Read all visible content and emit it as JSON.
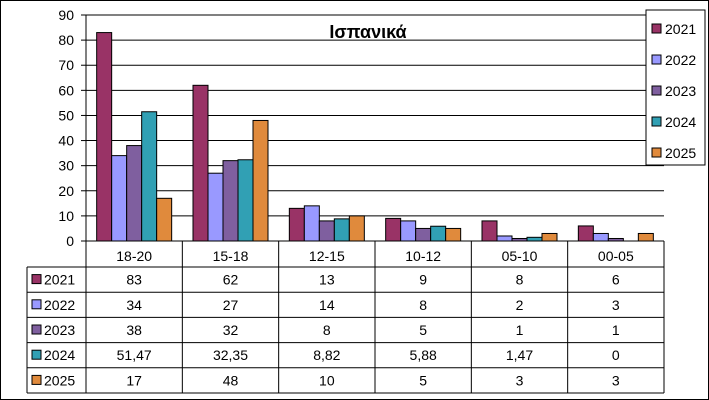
{
  "chart_data": {
    "type": "bar",
    "title": "Ισπανικά",
    "categories": [
      "18-20",
      "15-18",
      "12-15",
      "10-12",
      "05-10",
      "00-05"
    ],
    "ylim": [
      0,
      90
    ],
    "yticks": [
      0,
      10,
      20,
      30,
      40,
      50,
      60,
      70,
      80,
      90
    ],
    "grid": true,
    "legend_position": "right",
    "series": [
      {
        "name": "2021",
        "color": "#993366",
        "values": [
          83,
          62,
          13,
          9,
          8,
          6
        ],
        "table": [
          "83",
          "62",
          "13",
          "9",
          "8",
          "6"
        ]
      },
      {
        "name": "2022",
        "color": "#9999FF",
        "values": [
          34,
          27,
          14,
          8,
          2,
          3
        ],
        "table": [
          "34",
          "27",
          "14",
          "8",
          "2",
          "3"
        ]
      },
      {
        "name": "2023",
        "color": "#7F5F9F",
        "values": [
          38,
          32,
          8,
          5,
          1,
          1
        ],
        "table": [
          "38",
          "32",
          "8",
          "5",
          "1",
          "1"
        ]
      },
      {
        "name": "2024",
        "color": "#31A0B4",
        "values": [
          51.47,
          32.35,
          8.82,
          5.88,
          1.47,
          0
        ],
        "table": [
          "51,47",
          "32,35",
          "8,82",
          "5,88",
          "1,47",
          "0"
        ]
      },
      {
        "name": "2025",
        "color": "#E08A3C",
        "values": [
          17,
          48,
          10,
          5,
          3,
          3
        ],
        "table": [
          "17",
          "48",
          "10",
          "5",
          "3",
          "3"
        ]
      }
    ]
  }
}
